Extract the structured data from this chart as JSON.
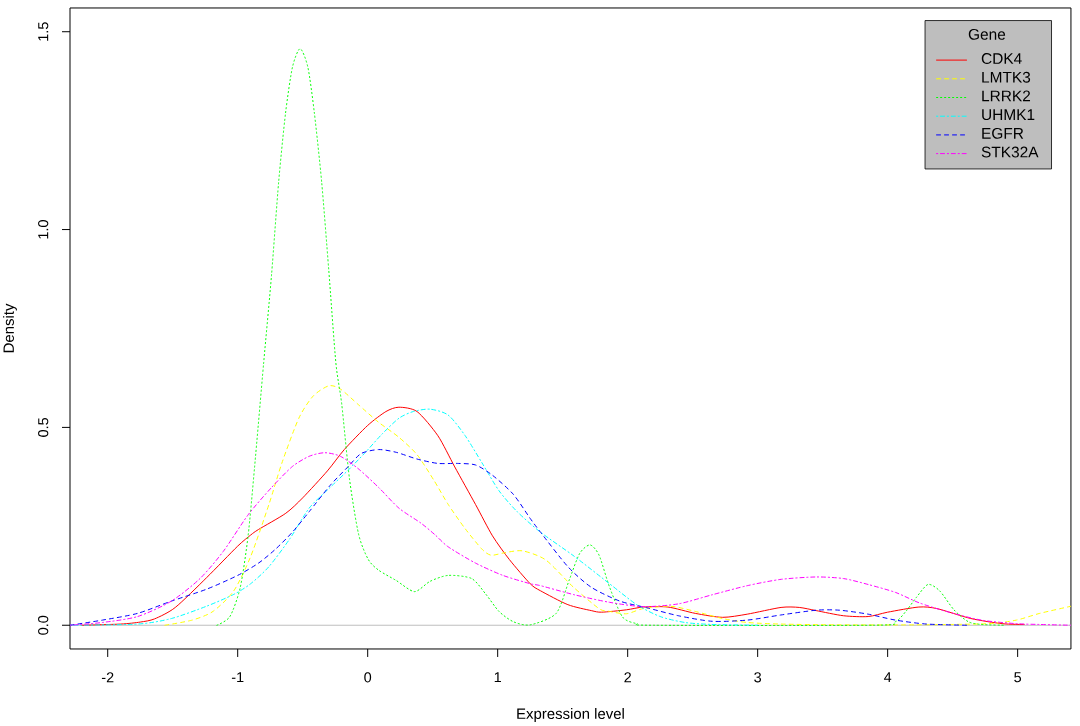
{
  "chart_data": {
    "type": "line",
    "xlabel": "Expression level",
    "ylabel": "Density",
    "legend_title": "Gene",
    "legend": "top right",
    "xlim": [
      -2.29,
      5.41
    ],
    "ylim": [
      -0.06,
      1.56
    ],
    "xticks": [
      -2,
      -1,
      0,
      1,
      2,
      3,
      4,
      5
    ],
    "yticks": [
      {
        "value": 0,
        "label": "0.0"
      },
      {
        "value": 0.5,
        "label": "0.5"
      },
      {
        "value": 1,
        "label": "1.0"
      },
      {
        "value": 1.5,
        "label": "1.5"
      }
    ],
    "ref_lines": [
      {
        "axis": "y",
        "value": 0,
        "color": "#bebebe"
      }
    ],
    "series": [
      {
        "name": "CDK4",
        "color": "#ff0000",
        "line_style": "solid",
        "x": [
          -2.2,
          -1.9,
          -1.75,
          -1.64,
          -1.48,
          -1.24,
          -1.0,
          -0.9,
          -0.84,
          -0.63,
          -0.5,
          -0.31,
          -0.18,
          0,
          0.14,
          0.24,
          0.38,
          0.54,
          0.67,
          0.83,
          0.96,
          1.09,
          1.25,
          1.33,
          1.54,
          1.72,
          1.8,
          1.99,
          2.12,
          2.31,
          2.52,
          2.73,
          2.92,
          3.18,
          3.32,
          3.45,
          3.66,
          3.85,
          4.0,
          4.24,
          4.38,
          4.64,
          4.88,
          5.05
        ],
        "values": [
          0,
          0.003,
          0.008,
          0.016,
          0.045,
          0.12,
          0.2,
          0.228,
          0.242,
          0.283,
          0.322,
          0.39,
          0.444,
          0.505,
          0.54,
          0.551,
          0.54,
          0.479,
          0.4,
          0.305,
          0.226,
          0.166,
          0.105,
          0.087,
          0.052,
          0.037,
          0.033,
          0.039,
          0.046,
          0.046,
          0.03,
          0.02,
          0.028,
          0.045,
          0.045,
          0.037,
          0.024,
          0.022,
          0.033,
          0.046,
          0.042,
          0.017,
          0.004,
          0.002
        ]
      },
      {
        "name": "LMTK3",
        "color": "#ffff00",
        "line_style": "dashed",
        "x": [
          -1.56,
          -1.35,
          -1.19,
          -1.03,
          -0.9,
          -0.76,
          -0.66,
          -0.53,
          -0.42,
          -0.3,
          -0.21,
          -0.07,
          0.08,
          0.24,
          0.38,
          0.51,
          0.62,
          0.75,
          0.88,
          0.95,
          1.05,
          1.19,
          1.37,
          1.58,
          1.78,
          1.86,
          1.99,
          2.12,
          2.33,
          2.52,
          2.73,
          2.92,
          3.18,
          3.6,
          4.2,
          4.77,
          4.99,
          5.17,
          5.41
        ],
        "values": [
          0,
          0.013,
          0.035,
          0.087,
          0.174,
          0.305,
          0.41,
          0.523,
          0.579,
          0.605,
          0.597,
          0.557,
          0.514,
          0.475,
          0.431,
          0.366,
          0.305,
          0.244,
          0.192,
          0.177,
          0.183,
          0.188,
          0.165,
          0.097,
          0.042,
          0.035,
          0.029,
          0.042,
          0.048,
          0.035,
          0.017,
          0.007,
          0.003,
          0.001,
          0.001,
          0.004,
          0.013,
          0.03,
          0.048
        ]
      },
      {
        "name": "LRRK2",
        "color": "#00ff00",
        "line_style": "dotted",
        "x": [
          -1.16,
          -1.06,
          -0.98,
          -0.92,
          -0.87,
          -0.8,
          -0.74,
          -0.685,
          -0.632,
          -0.579,
          -0.52,
          -0.46,
          -0.41,
          -0.354,
          -0.3,
          -0.245,
          -0.2,
          -0.14,
          -0.07,
          0.005,
          0.085,
          0.22,
          0.36,
          0.48,
          0.62,
          0.8,
          0.91,
          1.01,
          1.12,
          1.25,
          1.45,
          1.55,
          1.63,
          1.71,
          1.78,
          1.86,
          1.96,
          2.07,
          2.2,
          3.9,
          4.06,
          4.14,
          4.22,
          4.31,
          4.4,
          4.51,
          4.62,
          4.72,
          4.9
        ],
        "values": [
          0,
          0.022,
          0.096,
          0.226,
          0.4,
          0.664,
          0.884,
          1.12,
          1.294,
          1.41,
          1.457,
          1.41,
          1.294,
          1.12,
          0.9,
          0.664,
          0.56,
          0.37,
          0.23,
          0.166,
          0.139,
          0.113,
          0.085,
          0.111,
          0.126,
          0.118,
          0.078,
          0.035,
          0.009,
          0.001,
          0.03,
          0.114,
          0.181,
          0.203,
          0.177,
          0.097,
          0.021,
          0.004,
          0,
          0,
          0.009,
          0.035,
          0.07,
          0.103,
          0.087,
          0.039,
          0.009,
          0.002,
          0
        ]
      },
      {
        "name": "UHMK1",
        "color": "#00ffff",
        "line_style": "dashdot",
        "x": [
          -2.29,
          -1.77,
          -1.51,
          -1.24,
          -1.03,
          -0.9,
          -0.76,
          -0.6,
          -0.45,
          -0.29,
          -0.15,
          -0.02,
          0.11,
          0.24,
          0.35,
          0.48,
          0.62,
          0.75,
          0.88,
          1.01,
          1.15,
          1.33,
          1.59,
          1.86,
          2.07,
          2.25,
          2.44,
          2.65,
          3.0
        ],
        "values": [
          0,
          0.003,
          0.017,
          0.048,
          0.078,
          0.105,
          0.148,
          0.218,
          0.296,
          0.348,
          0.392,
          0.436,
          0.483,
          0.523,
          0.54,
          0.546,
          0.531,
          0.479,
          0.41,
          0.34,
          0.287,
          0.235,
          0.174,
          0.105,
          0.052,
          0.022,
          0.007,
          0.002,
          0
        ]
      },
      {
        "name": "EGFR",
        "color": "#0000ff",
        "line_style": "dashed",
        "x": [
          -2.29,
          -2.04,
          -1.77,
          -1.51,
          -1.24,
          -1.0,
          -0.84,
          -0.71,
          -0.58,
          -0.45,
          -0.29,
          -0.15,
          -0.05,
          0.085,
          0.22,
          0.38,
          0.54,
          0.69,
          0.83,
          0.96,
          1.12,
          1.25,
          1.33,
          1.54,
          1.72,
          1.94,
          2.15,
          2.39,
          2.65,
          2.92,
          3.18,
          3.45,
          3.63,
          3.85,
          4.06,
          4.3,
          4.62
        ],
        "values": [
          0,
          0.013,
          0.03,
          0.061,
          0.091,
          0.126,
          0.157,
          0.192,
          0.235,
          0.287,
          0.353,
          0.401,
          0.434,
          0.444,
          0.437,
          0.42,
          0.409,
          0.409,
          0.405,
          0.379,
          0.331,
          0.27,
          0.235,
          0.148,
          0.096,
          0.061,
          0.044,
          0.024,
          0.01,
          0.013,
          0.026,
          0.038,
          0.038,
          0.028,
          0.013,
          0.003,
          0
        ]
      },
      {
        "name": "STK32A",
        "color": "#ff00ff",
        "line_style": "dashdot",
        "x": [
          -2.29,
          -2.04,
          -1.77,
          -1.51,
          -1.29,
          -1.11,
          -0.92,
          -0.74,
          -0.58,
          -0.45,
          -0.33,
          -0.21,
          -0.074,
          0.085,
          0.24,
          0.41,
          0.52,
          0.62,
          0.83,
          1.04,
          1.25,
          1.33,
          1.59,
          1.86,
          2.12,
          2.39,
          2.65,
          2.92,
          3.18,
          3.45,
          3.66,
          3.85,
          4.06,
          4.24,
          4.45,
          4.72,
          4.99,
          5.17,
          5.41
        ],
        "values": [
          0,
          0.007,
          0.022,
          0.061,
          0.118,
          0.187,
          0.279,
          0.348,
          0.401,
          0.427,
          0.436,
          0.427,
          0.396,
          0.348,
          0.296,
          0.258,
          0.228,
          0.198,
          0.157,
          0.126,
          0.105,
          0.1,
          0.077,
          0.058,
          0.047,
          0.054,
          0.077,
          0.1,
          0.116,
          0.122,
          0.118,
          0.103,
          0.083,
          0.057,
          0.035,
          0.013,
          0.004,
          0.002,
          0
        ]
      }
    ]
  }
}
